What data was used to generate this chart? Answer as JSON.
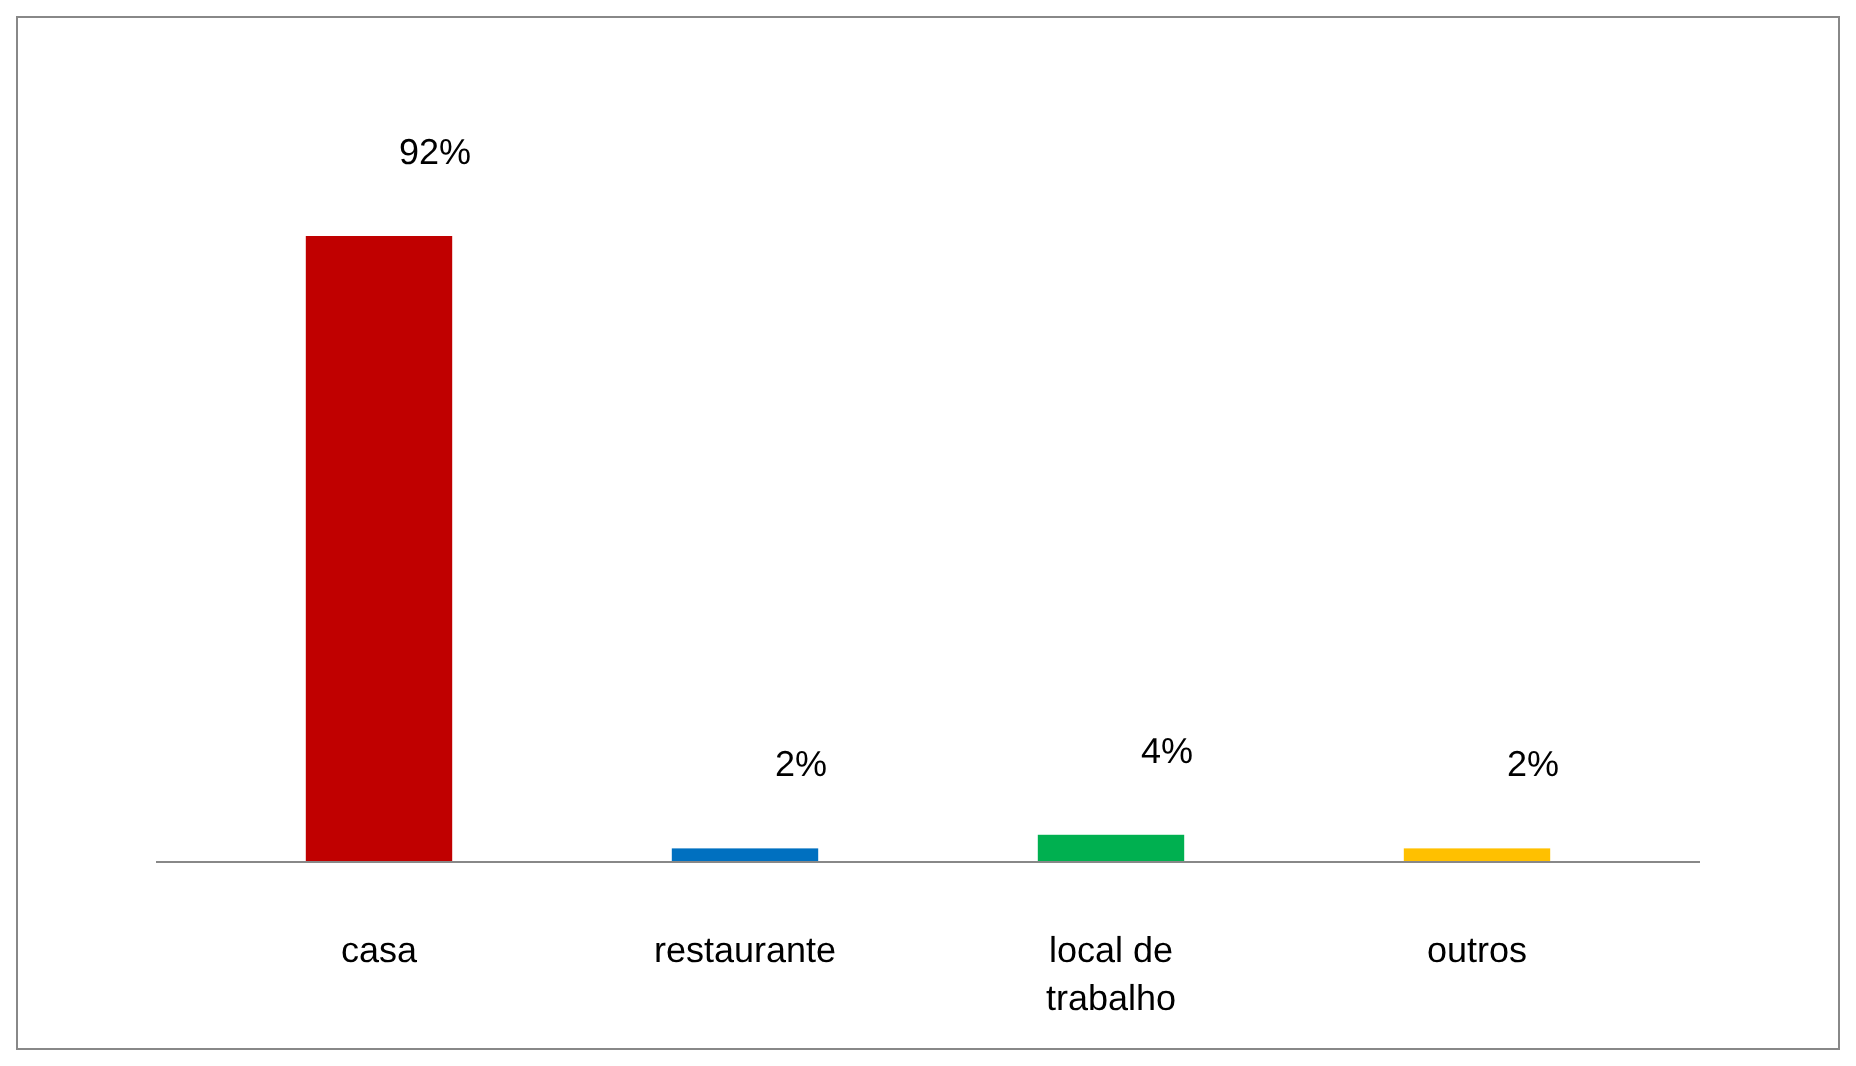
{
  "chart_data": {
    "type": "bar",
    "categories": [
      "casa",
      "restaurante",
      "local de trabalho",
      "outros"
    ],
    "values": [
      92,
      2,
      4,
      2
    ],
    "colors": [
      "#c00000",
      "#0070c0",
      "#00b050",
      "#ffc000"
    ],
    "value_labels": [
      "92%",
      "2%",
      "4%",
      "2%"
    ]
  }
}
